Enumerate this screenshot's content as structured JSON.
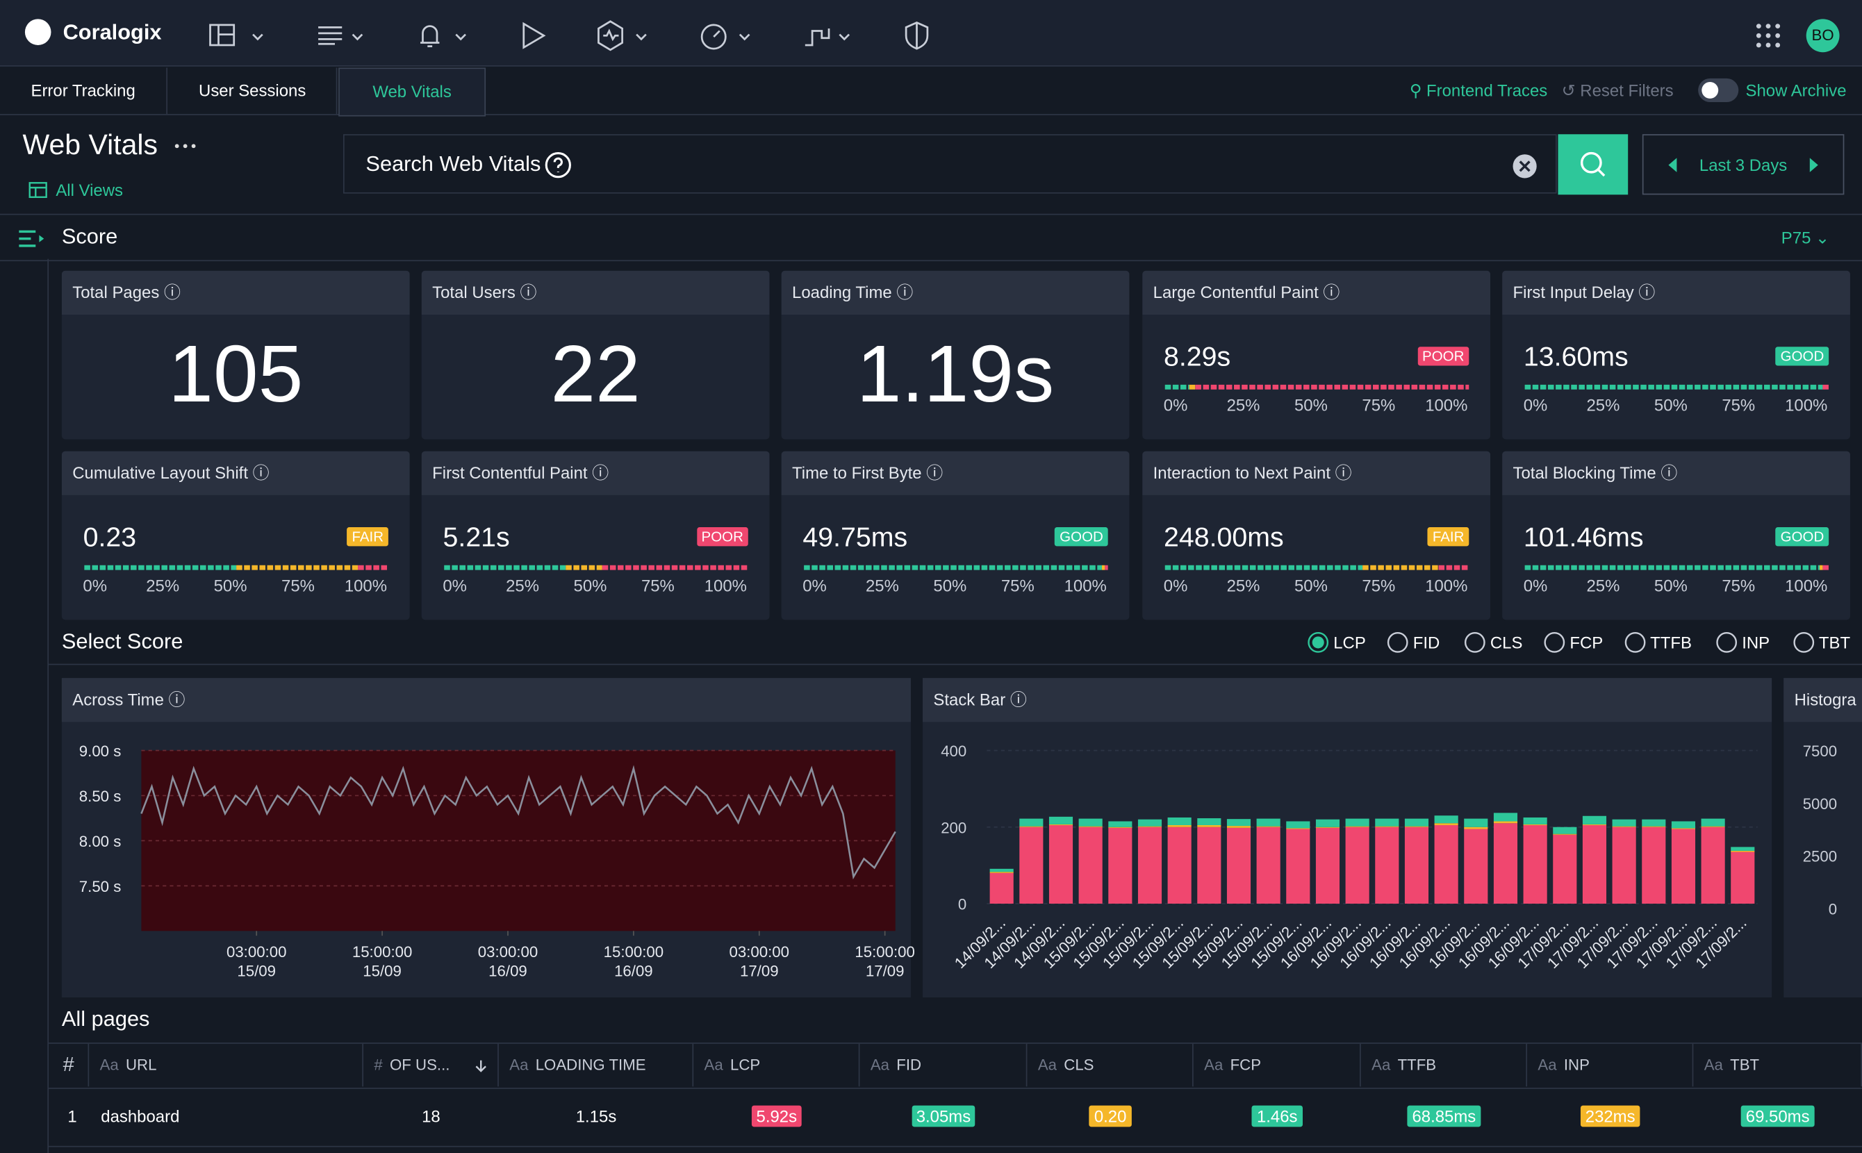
{
  "nav": {
    "brand": "Coralogix",
    "avatar": "BO"
  },
  "tabs": [
    "Error Tracking",
    "User Sessions",
    "Web Vitals"
  ],
  "active_tab": 2,
  "toolbar": {
    "frontend_traces": "Frontend Traces",
    "reset": "Reset Filters",
    "archive": "Show Archive"
  },
  "header": {
    "title": "Web Vitals",
    "all_views": "All Views",
    "search": "Search Web Vitals",
    "time": "Last 3 Days"
  },
  "score": {
    "title": "Score",
    "percentile": "P75"
  },
  "segment_colors": [
    "#2ec79a",
    "#f5b72a",
    "#f0476f"
  ],
  "cards": {
    "big": [
      {
        "label": "Total Pages",
        "value": "105"
      },
      {
        "label": "Total Users",
        "value": "22"
      },
      {
        "label": "Loading Time",
        "value": "1.19s"
      }
    ],
    "gauges": [
      {
        "label": "Large Contentful Paint",
        "value": "8.29s",
        "status": "POOR",
        "badge_color": "#f0476f",
        "segments": [
          8,
          2,
          90
        ]
      },
      {
        "label": "First Input Delay",
        "value": "13.60ms",
        "status": "GOOD",
        "badge_color": "#2ec79a",
        "segments": [
          98,
          0,
          2
        ]
      },
      {
        "label": "Cumulative Layout Shift",
        "value": "0.23",
        "status": "FAIR",
        "badge_color": "#f5b72a",
        "segments": [
          50,
          40,
          10
        ]
      },
      {
        "label": "First Contentful Paint",
        "value": "5.21s",
        "status": "POOR",
        "badge_color": "#f0476f",
        "segments": [
          40,
          12,
          48
        ]
      },
      {
        "label": "Time to First Byte",
        "value": "49.75ms",
        "status": "GOOD",
        "badge_color": "#2ec79a",
        "segments": [
          98,
          1,
          1
        ]
      },
      {
        "label": "Interaction to Next Paint",
        "value": "248.00ms",
        "status": "FAIR",
        "badge_color": "#f5b72a",
        "segments": [
          65,
          25,
          10
        ]
      },
      {
        "label": "Total Blocking Time",
        "value": "101.46ms",
        "status": "GOOD",
        "badge_color": "#2ec79a",
        "segments": [
          97,
          1,
          2
        ]
      }
    ],
    "scale": [
      "0%",
      "25%",
      "50%",
      "75%",
      "100%"
    ]
  },
  "select_score": {
    "title": "Select Score",
    "options": [
      "LCP",
      "FID",
      "CLS",
      "FCP",
      "TTFB",
      "INP",
      "TBT"
    ],
    "selected": 0
  },
  "across_time": {
    "type": "line",
    "title": "Across Time",
    "color": "#8a8f9c",
    "area_color": "#3a0810",
    "x": [
      0,
      1,
      2,
      3,
      4,
      5,
      6,
      7,
      8,
      9,
      10,
      11,
      12,
      13,
      14,
      15,
      16,
      17,
      18,
      19,
      20,
      21,
      22,
      23,
      24,
      25,
      26,
      27,
      28,
      29,
      30,
      31,
      32,
      33,
      34,
      35,
      36,
      37,
      38,
      39,
      40,
      41,
      42,
      43,
      44,
      45,
      46,
      47,
      48,
      49,
      50,
      51,
      52,
      53,
      54,
      55,
      56,
      57,
      58,
      59,
      60,
      61,
      62,
      63,
      64,
      65,
      66,
      67,
      68,
      69,
      70,
      71,
      72
    ],
    "values": [
      8.3,
      8.6,
      8.2,
      8.7,
      8.4,
      8.8,
      8.5,
      8.6,
      8.3,
      8.5,
      8.4,
      8.6,
      8.3,
      8.5,
      8.4,
      8.6,
      8.5,
      8.3,
      8.6,
      8.5,
      8.7,
      8.6,
      8.4,
      8.7,
      8.5,
      8.8,
      8.4,
      8.6,
      8.3,
      8.5,
      8.4,
      8.7,
      8.5,
      8.6,
      8.4,
      8.5,
      8.3,
      8.7,
      8.4,
      8.5,
      8.6,
      8.3,
      8.7,
      8.4,
      8.5,
      8.6,
      8.4,
      8.8,
      8.3,
      8.5,
      8.6,
      8.5,
      8.4,
      8.6,
      8.5,
      8.3,
      8.4,
      8.2,
      8.5,
      8.3,
      8.6,
      8.4,
      8.7,
      8.5,
      8.8,
      8.4,
      8.6,
      8.3,
      7.6,
      7.8,
      7.7,
      7.9,
      8.1
    ],
    "xlim": [
      0,
      72
    ],
    "ylim": [
      7,
      9
    ],
    "xticks": [
      {
        "value": 11,
        "label": "03:00:00",
        "sublabel": "15/09"
      },
      {
        "value": 23,
        "label": "15:00:00",
        "sublabel": "15/09"
      },
      {
        "value": 35,
        "label": "03:00:00",
        "sublabel": "16/09"
      },
      {
        "value": 47,
        "label": "15:00:00",
        "sublabel": "16/09"
      },
      {
        "value": 59,
        "label": "03:00:00",
        "sublabel": "17/09"
      },
      {
        "value": 71,
        "label": "15:00:00",
        "sublabel": "17/09"
      }
    ],
    "yticks": [
      {
        "value": 7.5,
        "label": "7.50 s"
      },
      {
        "value": 8,
        "label": "8.00 s"
      },
      {
        "value": 8.5,
        "label": "8.50 s"
      },
      {
        "value": 9,
        "label": "9.00 s"
      }
    ]
  },
  "stack_bar": {
    "type": "bar",
    "title": "Stack Bar",
    "stacked": true,
    "categories": [
      "14/09/2...",
      "14/09/2...",
      "14/09/2...",
      "15/09/2...",
      "15/09/2...",
      "15/09/2...",
      "15/09/2...",
      "15/09/2...",
      "15/09/2...",
      "15/09/2...",
      "15/09/2...",
      "16/09/2...",
      "16/09/2...",
      "16/09/2...",
      "16/09/2...",
      "16/09/2...",
      "16/09/2...",
      "16/09/2...",
      "16/09/2...",
      "17/09/2...",
      "17/09/2...",
      "17/09/2...",
      "17/09/2...",
      "17/09/2...",
      "17/09/2...",
      "17/09/2..."
    ],
    "series": [
      {
        "color": "#f0476f",
        "values": [
          80,
          200,
          205,
          200,
          198,
          200,
          200,
          200,
          198,
          200,
          195,
          198,
          200,
          200,
          200,
          205,
          195,
          210,
          205,
          180,
          205,
          200,
          200,
          195,
          200,
          135
        ]
      },
      {
        "color": "#f5b72a",
        "values": [
          3,
          2,
          2,
          2,
          2,
          2,
          5,
          5,
          5,
          2,
          2,
          2,
          2,
          2,
          2,
          5,
          5,
          5,
          2,
          2,
          2,
          2,
          2,
          2,
          2,
          3
        ]
      },
      {
        "color": "#2ec79a",
        "values": [
          8,
          20,
          20,
          20,
          15,
          18,
          20,
          18,
          18,
          20,
          18,
          20,
          20,
          20,
          20,
          20,
          22,
          22,
          18,
          18,
          22,
          18,
          18,
          18,
          20,
          10
        ]
      }
    ],
    "ylim": [
      0,
      400
    ],
    "yticks": [
      0,
      200,
      400
    ]
  },
  "histogram": {
    "title": "Histogra",
    "ylim": [
      0,
      7500
    ],
    "yticks": [
      0,
      2500,
      5000,
      7500
    ]
  },
  "table": {
    "title": "All pages",
    "columns": [
      {
        "name": "#"
      },
      {
        "icon": "Aa",
        "name": "URL"
      },
      {
        "icon": "#",
        "name": "OF US..."
      },
      {
        "icon": "Aa",
        "name": "LOADING TIME"
      },
      {
        "icon": "Aa",
        "name": "LCP"
      },
      {
        "icon": "Aa",
        "name": "FID"
      },
      {
        "icon": "Aa",
        "name": "CLS"
      },
      {
        "icon": "Aa",
        "name": "FCP"
      },
      {
        "icon": "Aa",
        "name": "TTFB"
      },
      {
        "icon": "Aa",
        "name": "INP"
      },
      {
        "icon": "Aa",
        "name": "TBT"
      }
    ],
    "rows": [
      [
        "1",
        "dashboard",
        "18",
        "1.15s",
        "5.92s",
        "3.05ms",
        "0.20",
        "1.46s",
        "68.85ms",
        "232ms",
        "69.50ms"
      ]
    ],
    "badge_colors": [
      [
        null,
        null,
        null,
        null,
        "#f0476f",
        "#2ec79a",
        "#f5b72a",
        "#2ec79a",
        "#2ec79a",
        "#f5b72a",
        "#2ec79a"
      ]
    ]
  }
}
